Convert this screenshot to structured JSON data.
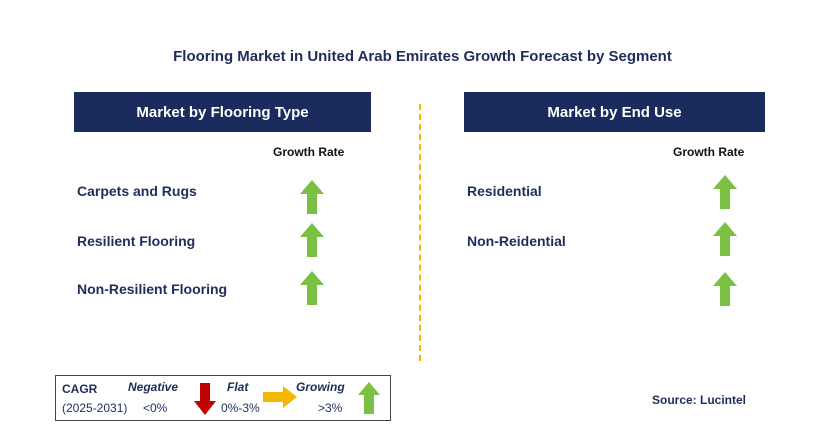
{
  "title": "Flooring Market in United Arab Emirates Growth Forecast by Segment",
  "left_panel": {
    "header": "Market by Flooring Type",
    "growth_rate_label": "Growth Rate",
    "items": [
      {
        "label": "Carpets and Rugs",
        "trend": "growing"
      },
      {
        "label": "Resilient Flooring",
        "trend": "growing"
      },
      {
        "label": "Non-Resilient Flooring",
        "trend": "growing"
      }
    ]
  },
  "right_panel": {
    "header": "Market by End Use",
    "growth_rate_label": "Growth Rate",
    "items": [
      {
        "label": "Residential",
        "trend": "growing"
      },
      {
        "label": "Non-Reidential",
        "trend": "growing"
      },
      {
        "label": "",
        "trend": "growing"
      }
    ]
  },
  "legend": {
    "cagr_label": "CAGR",
    "period": "(2025-2031)",
    "negative_label": "Negative",
    "negative_value": "<0%",
    "flat_label": "Flat",
    "flat_value": "0%-3%",
    "growing_label": "Growing",
    "growing_value": ">3%"
  },
  "source": "Source: Lucintel",
  "colors": {
    "header_bg": "#1a2b5e",
    "growing": "#7ac143",
    "negative": "#c00000",
    "flat": "#f5b700",
    "divider": "#f5b700"
  },
  "icons": {
    "growing": "arrow-up-icon",
    "negative": "arrow-down-icon",
    "flat": "arrow-right-icon"
  }
}
